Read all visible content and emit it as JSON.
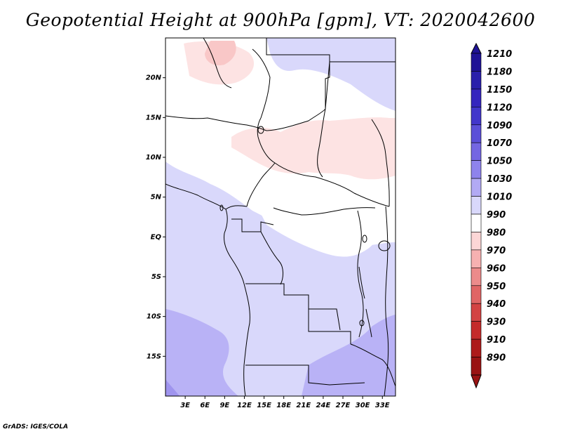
{
  "title": "Geopotential Height at 900hPa [gpm], VT: 2020042600",
  "credit": "GrADS: IGES/COLA",
  "chart_data": {
    "type": "heatmap",
    "variable": "Geopotential Height",
    "level": "900hPa",
    "units": "gpm",
    "valid_time": "2020042600",
    "lon_range": [
      0,
      35
    ],
    "lat_range": [
      -20,
      25
    ],
    "x_ticks": [
      "3E",
      "6E",
      "9E",
      "12E",
      "15E",
      "18E",
      "21E",
      "24E",
      "27E",
      "30E",
      "33E"
    ],
    "x_tick_values": [
      3,
      6,
      9,
      12,
      15,
      18,
      21,
      24,
      27,
      30,
      33
    ],
    "y_ticks": [
      "20N",
      "15N",
      "10N",
      "5N",
      "EQ",
      "5S",
      "10S",
      "15S"
    ],
    "y_tick_values": [
      20,
      15,
      10,
      5,
      0,
      -5,
      -10,
      -15
    ],
    "colorbar": {
      "levels": [
        "1210",
        "1180",
        "1150",
        "1120",
        "1090",
        "1070",
        "1050",
        "1030",
        "1010",
        "990",
        "980",
        "970",
        "960",
        "950",
        "940",
        "930",
        "910",
        "890"
      ],
      "colors": [
        "#1f1396",
        "#2a1fab",
        "#3525be",
        "#4236cb",
        "#5b4fd8",
        "#7466e2",
        "#8e83ec",
        "#b2aaf4",
        "#d9d8fb",
        "#ffffff",
        "#fcd6d6",
        "#f6b1b1",
        "#ec8b8b",
        "#e06565",
        "#d34343",
        "#c42a2a",
        "#ad1a1a",
        "#991313"
      ]
    },
    "fields": {
      "background": "#ffffff",
      "low_region": "#d9d8fb",
      "lower_region": "#b9b2f6",
      "lowest_region": "#9f94ee",
      "high_region": "#fde3e3",
      "higher_region": "#f9c7c7"
    }
  }
}
